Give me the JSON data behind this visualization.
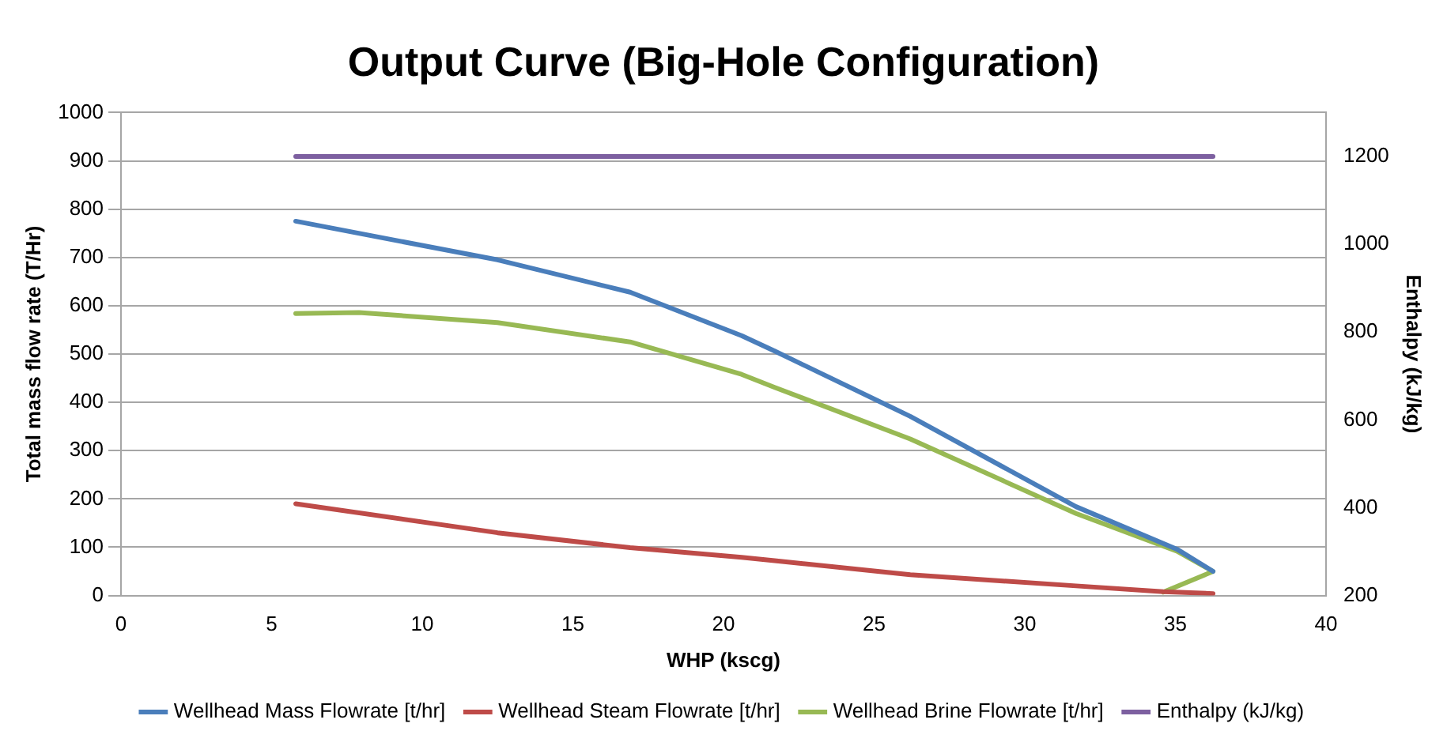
{
  "chart_data": {
    "type": "line",
    "title": "Output Curve (Big-Hole Configuration)",
    "xlabel": "WHP (kscg)",
    "ylabel": "Total mass flow rate (T/Hr)",
    "y2label": "Enthalpy (kJ/kg)",
    "xlim": [
      0,
      40
    ],
    "xticks": [
      0,
      5,
      10,
      15,
      20,
      25,
      30,
      35,
      40
    ],
    "ylim": [
      0,
      1000
    ],
    "yticks": [
      0,
      100,
      200,
      300,
      400,
      500,
      600,
      700,
      800,
      900,
      1000
    ],
    "y2lim": [
      200,
      1300
    ],
    "y2ticks": [
      200,
      400,
      600,
      800,
      1000,
      1200
    ],
    "grid": "y",
    "legend": "bottom",
    "marker": "none",
    "line_style": "solid",
    "series": [
      {
        "name": "Wellhead Mass Flowrate [t/hr]",
        "color": "#4a7ebb",
        "x": [
          5.8,
          12.5,
          16.9,
          20.6,
          21.7,
          26.2,
          31.7,
          35.05,
          36.25
        ],
        "values": [
          775,
          695,
          628,
          538,
          506,
          371,
          184,
          96,
          50
        ]
      },
      {
        "name": "Wellhead Steam Flowrate [t/hr]",
        "color": "#be4b48",
        "x": [
          5.8,
          12.5,
          16.9,
          20.6,
          21.7,
          26.2,
          31.7,
          34.6,
          36.25
        ],
        "values": [
          190,
          130,
          99,
          79,
          72,
          43,
          20,
          8,
          4
        ]
      },
      {
        "name": "Wellhead Brine Flowrate [t/hr]",
        "color": "#98b954",
        "x": [
          5.8,
          7.9,
          12.5,
          16.9,
          20.6,
          21.7,
          26.2,
          31.7,
          35.05,
          36.25,
          34.6
        ],
        "values": [
          584,
          586,
          565,
          525,
          458,
          431,
          324,
          170,
          92,
          50,
          7
        ]
      },
      {
        "name": "Enthalpy (kJ/kg)",
        "color": "#7d60a0",
        "axis": "y2",
        "x": [
          5.8,
          36.25
        ],
        "values": [
          1200,
          1200
        ]
      }
    ]
  }
}
